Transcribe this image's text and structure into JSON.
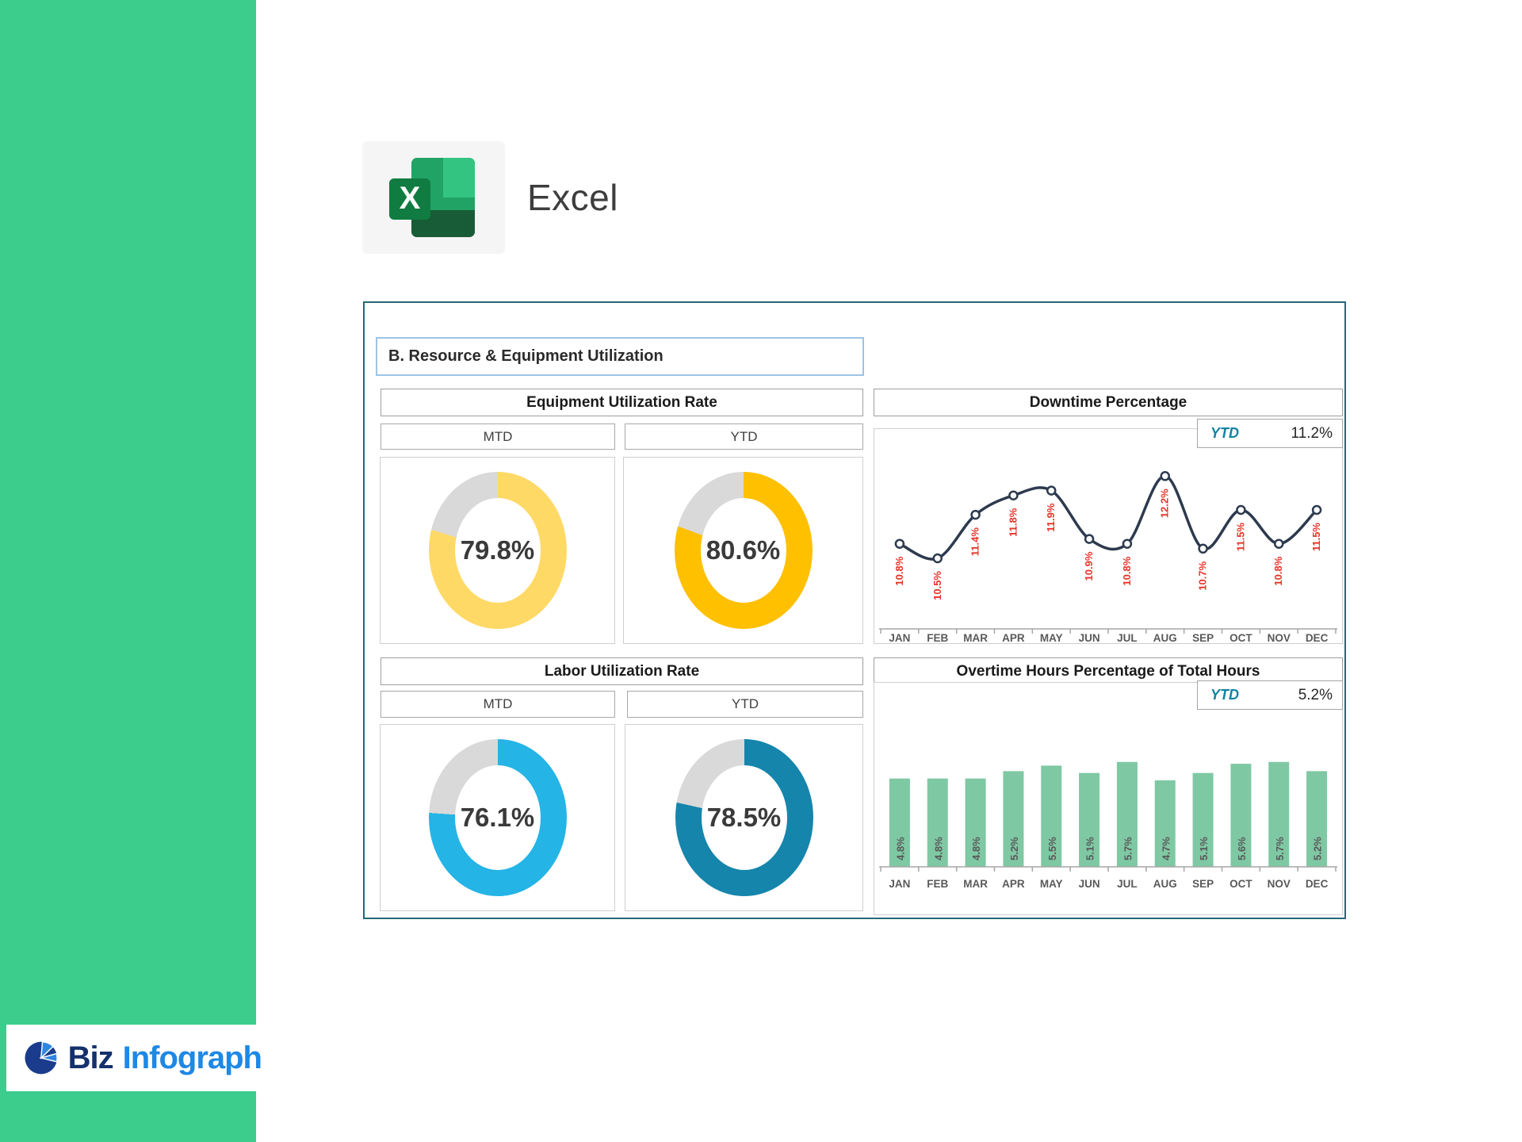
{
  "app": {
    "name": "Excel"
  },
  "footer_logo": {
    "biz": "Biz",
    "infograph": "Infograph"
  },
  "dashboard": {
    "title": "B. Resource & Equipment Utilization",
    "equipment": {
      "header": "Equipment Utilization Rate",
      "mtd_label": "MTD",
      "ytd_label": "YTD"
    },
    "labor": {
      "header": "Labor Utilization Rate",
      "mtd_label": "MTD",
      "ytd_label": "YTD"
    },
    "downtime": {
      "header": "Downtime Percentage",
      "ytd_label": "YTD",
      "ytd_value": "11.2%"
    },
    "overtime": {
      "header": "Overtime Hours Percentage of Total Hours",
      "ytd_label": "YTD",
      "ytd_value": "5.2%"
    }
  },
  "colors": {
    "sidebar_green": "#3CCD8C",
    "frame_border": "#266878",
    "donut_rest_gray": "#D9D9D9",
    "line_navy": "#2D3A4E",
    "data_label_red": "#E63329",
    "bar_green": "#7FC8A4",
    "ytd_teal": "#1581A2"
  },
  "chart_data": [
    {
      "id": "equipment_mtd",
      "type": "donut",
      "title": "Equipment Utilization Rate",
      "label": "MTD",
      "value": 79.8,
      "display": "79.8%",
      "color": "#FFD966",
      "rest_color": "#D9D9D9"
    },
    {
      "id": "equipment_ytd",
      "type": "donut",
      "title": "Equipment Utilization Rate",
      "label": "YTD",
      "value": 80.6,
      "display": "80.6%",
      "color": "#FFC000",
      "rest_color": "#D9D9D9"
    },
    {
      "id": "labor_mtd",
      "type": "donut",
      "title": "Labor Utilization Rate",
      "label": "MTD",
      "value": 76.1,
      "display": "76.1%",
      "color": "#24B4E6",
      "rest_color": "#D9D9D9"
    },
    {
      "id": "labor_ytd",
      "type": "donut",
      "title": "Labor Utilization Rate",
      "label": "YTD",
      "value": 78.5,
      "display": "78.5%",
      "color": "#1585AC",
      "rest_color": "#D9D9D9"
    },
    {
      "id": "downtime",
      "type": "line",
      "title": "Downtime Percentage",
      "categories": [
        "JAN",
        "FEB",
        "MAR",
        "APR",
        "MAY",
        "JUN",
        "JUL",
        "AUG",
        "SEP",
        "OCT",
        "NOV",
        "DEC"
      ],
      "values": [
        10.8,
        10.5,
        11.4,
        11.8,
        11.9,
        10.9,
        10.8,
        12.2,
        10.7,
        11.5,
        10.8,
        11.5
      ],
      "ytd": 11.2,
      "xlabel": "",
      "ylabel": "",
      "ylim": [
        10.0,
        12.5
      ],
      "grid": false,
      "legend": "none",
      "line_color": "#2D3A4E",
      "marker": "circle-open",
      "label_color": "#E63329"
    },
    {
      "id": "overtime",
      "type": "bar",
      "title": "Overtime Hours Percentage of Total Hours",
      "categories": [
        "JAN",
        "FEB",
        "MAR",
        "APR",
        "MAY",
        "JUN",
        "JUL",
        "AUG",
        "SEP",
        "OCT",
        "NOV",
        "DEC"
      ],
      "values": [
        4.8,
        4.8,
        4.8,
        5.2,
        5.5,
        5.1,
        5.7,
        4.7,
        5.1,
        5.6,
        5.7,
        5.2
      ],
      "ytd": 5.2,
      "xlabel": "",
      "ylabel": "",
      "ylim": [
        0,
        6.5
      ],
      "grid": false,
      "legend": "none",
      "bar_color": "#7FC8A4",
      "label_color": "#595959"
    }
  ]
}
